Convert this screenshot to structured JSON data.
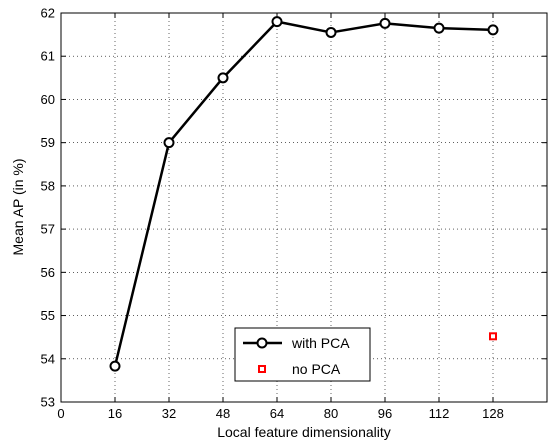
{
  "chart_data": {
    "type": "line",
    "xlabel": "Local feature dimensionality",
    "ylabel": "Mean AP (in %)",
    "xlim": [
      0,
      144
    ],
    "ylim": [
      53,
      62
    ],
    "xticks": [
      0,
      16,
      32,
      48,
      64,
      80,
      96,
      112,
      128
    ],
    "yticks": [
      53,
      54,
      55,
      56,
      57,
      58,
      59,
      60,
      61,
      62
    ],
    "grid": true,
    "legend_position": "bottom-center",
    "series": [
      {
        "name": "with PCA",
        "marker": "circle",
        "line": true,
        "color": "#000000",
        "x": [
          16,
          32,
          48,
          64,
          80,
          96,
          112,
          128
        ],
        "y": [
          53.83,
          59.0,
          60.5,
          61.8,
          61.55,
          61.76,
          61.65,
          61.61
        ]
      },
      {
        "name": "no PCA",
        "marker": "square",
        "line": false,
        "color": "#ff0000",
        "x": [
          128
        ],
        "y": [
          54.52
        ]
      }
    ]
  }
}
